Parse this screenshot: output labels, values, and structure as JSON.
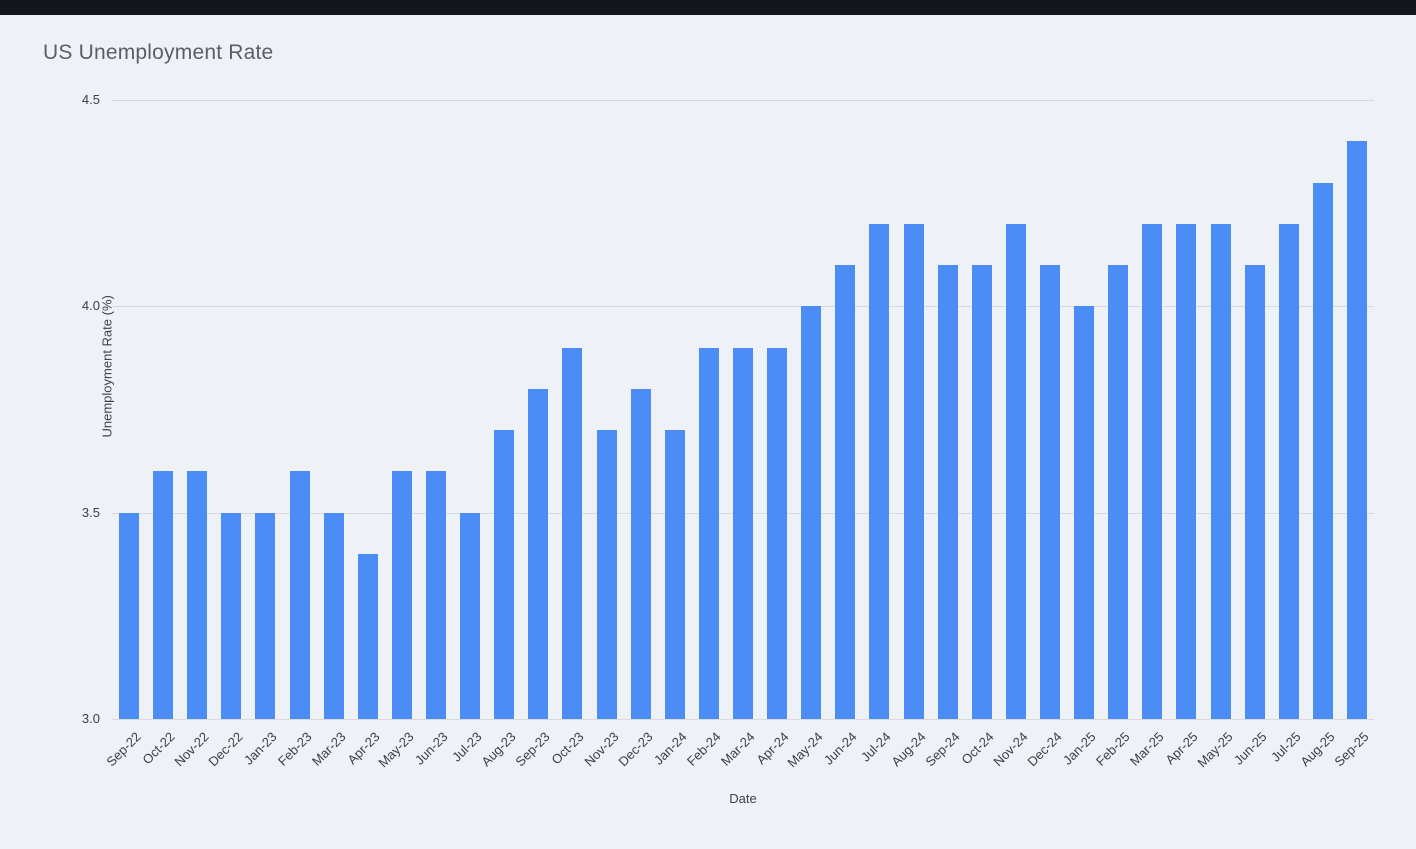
{
  "page": {
    "background_color": "#eef1f6",
    "top_bar_color": "#14161d"
  },
  "chart_data": {
    "type": "bar",
    "title": "US Unemployment Rate",
    "xlabel": "Date",
    "ylabel": "Unemployment Rate (%)",
    "categories": [
      "Sep-22",
      "Oct-22",
      "Nov-22",
      "Dec-22",
      "Jan-23",
      "Feb-23",
      "Mar-23",
      "Apr-23",
      "May-23",
      "Jun-23",
      "Jul-23",
      "Aug-23",
      "Sep-23",
      "Oct-23",
      "Nov-23",
      "Dec-23",
      "Jan-24",
      "Feb-24",
      "Mar-24",
      "Apr-24",
      "May-24",
      "Jun-24",
      "Jul-24",
      "Aug-24",
      "Sep-24",
      "Oct-24",
      "Nov-24",
      "Dec-24",
      "Jan-25",
      "Feb-25",
      "Mar-25",
      "Apr-25",
      "May-25",
      "Jun-25",
      "Jul-25",
      "Aug-25",
      "Sep-25"
    ],
    "values": [
      3.5,
      3.6,
      3.6,
      3.5,
      3.5,
      3.6,
      3.5,
      3.4,
      3.6,
      3.6,
      3.5,
      3.7,
      3.8,
      3.9,
      3.7,
      3.8,
      3.7,
      3.9,
      3.9,
      3.9,
      4.0,
      4.1,
      4.2,
      4.2,
      4.1,
      4.1,
      4.2,
      4.1,
      4.0,
      4.1,
      4.2,
      4.2,
      4.2,
      4.1,
      4.2,
      4.3,
      4.4
    ],
    "ylim": [
      3.0,
      4.5
    ],
    "y_ticks": [
      3.0,
      3.5,
      4.0,
      4.5
    ],
    "y_tick_labels": [
      "3.0",
      "3.5",
      "4.0",
      "4.5"
    ],
    "grid": "horizontal-only",
    "legend": "none",
    "bar_color": "#4b8cf5"
  }
}
